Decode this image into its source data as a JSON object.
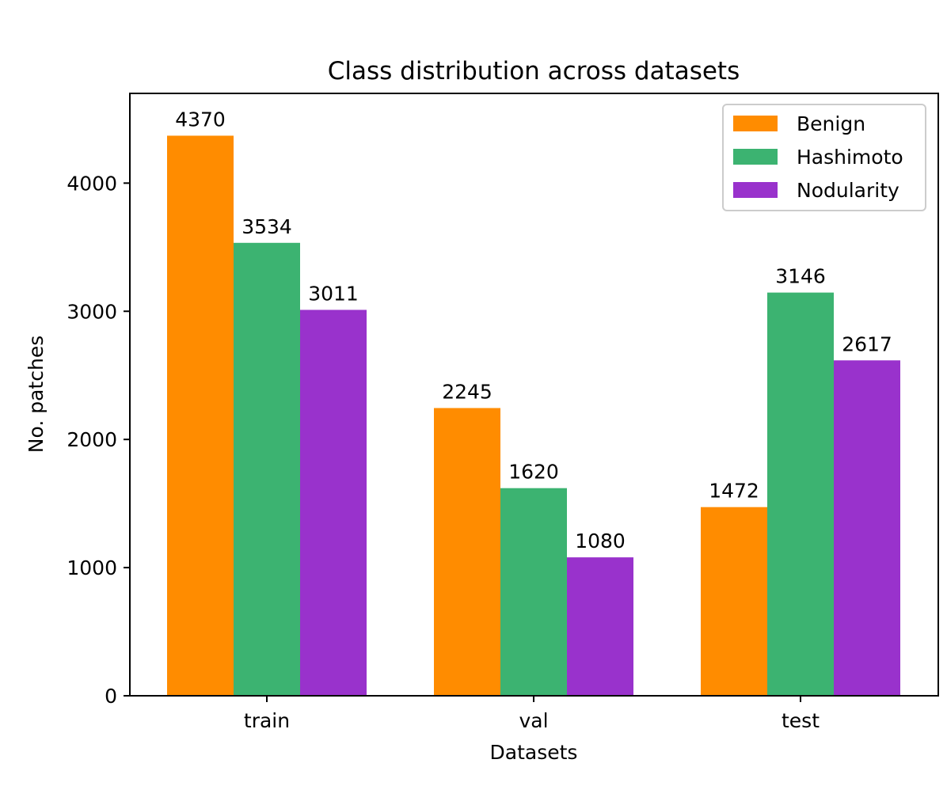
{
  "chart_data": {
    "type": "bar",
    "title": "Class distribution across datasets",
    "xlabel": "Datasets",
    "ylabel": "No. patches",
    "categories": [
      "train",
      "val",
      "test"
    ],
    "series": [
      {
        "name": "Benign",
        "color": "#ff8c00",
        "values": [
          4370,
          2245,
          1472
        ]
      },
      {
        "name": "Hashimoto",
        "color": "#3cb371",
        "values": [
          3534,
          1620,
          3146
        ]
      },
      {
        "name": "Nodularity",
        "color": "#9932cc",
        "values": [
          3011,
          1080,
          2617
        ]
      }
    ],
    "yticks": [
      0,
      1000,
      2000,
      3000,
      4000
    ],
    "ylim": [
      0,
      4700
    ],
    "grid": false,
    "legend": "top-right"
  }
}
